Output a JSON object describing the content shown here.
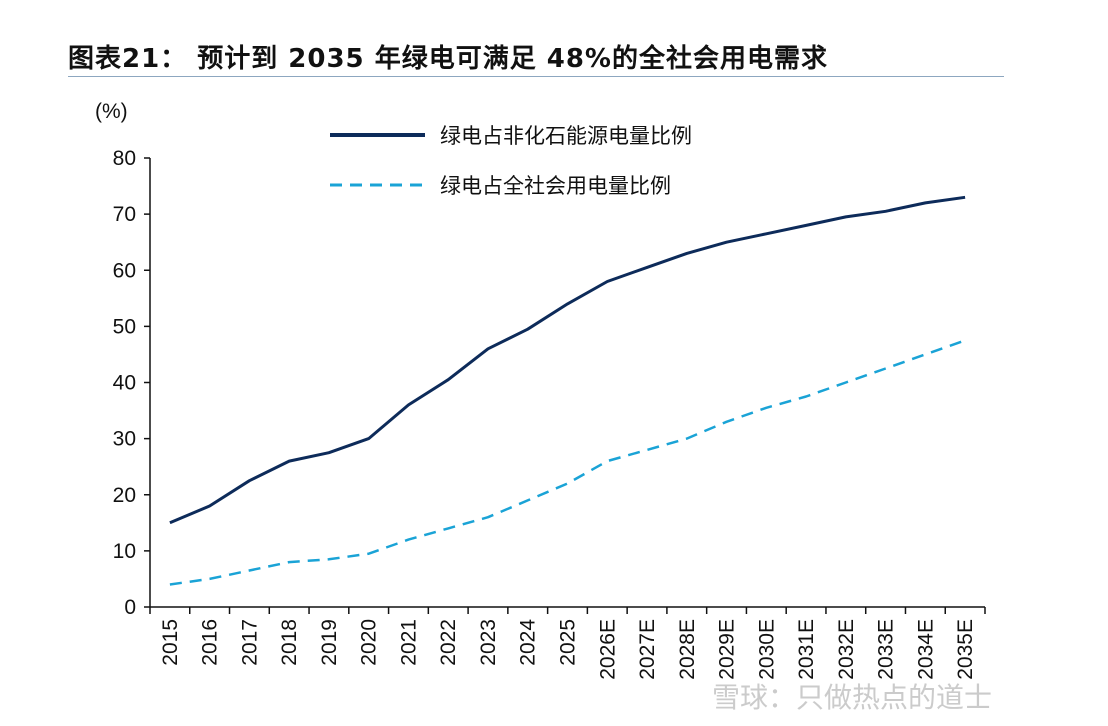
{
  "title": "图表21： 预计到 2035 年绿电可满足 48%的全社会用电需求",
  "unit_label": "(%)",
  "watermark": "雪球：只做热点的道士",
  "colors": {
    "series1": "#0d2b5a",
    "series2": "#1aa3d6",
    "axis": "#111111",
    "rule": "#8da7c0"
  },
  "chart_data": {
    "type": "line",
    "title": "预计到 2035 年绿电可满足 48%的全社会用电需求",
    "xlabel": "",
    "ylabel": "(%)",
    "ylim": [
      0,
      80
    ],
    "yticks": [
      0,
      10,
      20,
      30,
      40,
      50,
      60,
      70,
      80
    ],
    "categories": [
      "2015",
      "2016",
      "2017",
      "2018",
      "2019",
      "2020",
      "2021",
      "2022",
      "2023",
      "2024",
      "2025",
      "2026E",
      "2027E",
      "2028E",
      "2029E",
      "2030E",
      "2031E",
      "2032E",
      "2033E",
      "2034E",
      "2035E"
    ],
    "series": [
      {
        "name": "绿电占非化石能源电量比例",
        "style": "solid",
        "values": [
          15,
          18,
          22.5,
          26,
          27.5,
          30,
          36,
          40.5,
          46,
          49.5,
          54,
          58,
          60.5,
          63,
          65,
          66.5,
          68,
          69.5,
          70.5,
          72,
          73
        ]
      },
      {
        "name": "绿电占全社会用电量比例",
        "style": "dashed",
        "values": [
          4,
          5,
          6.5,
          8,
          8.5,
          9.5,
          12,
          14,
          16,
          19,
          22,
          26,
          28,
          30,
          33,
          35.5,
          37.5,
          40,
          42.5,
          45,
          47.5
        ]
      }
    ],
    "legend_position": "top-center"
  }
}
